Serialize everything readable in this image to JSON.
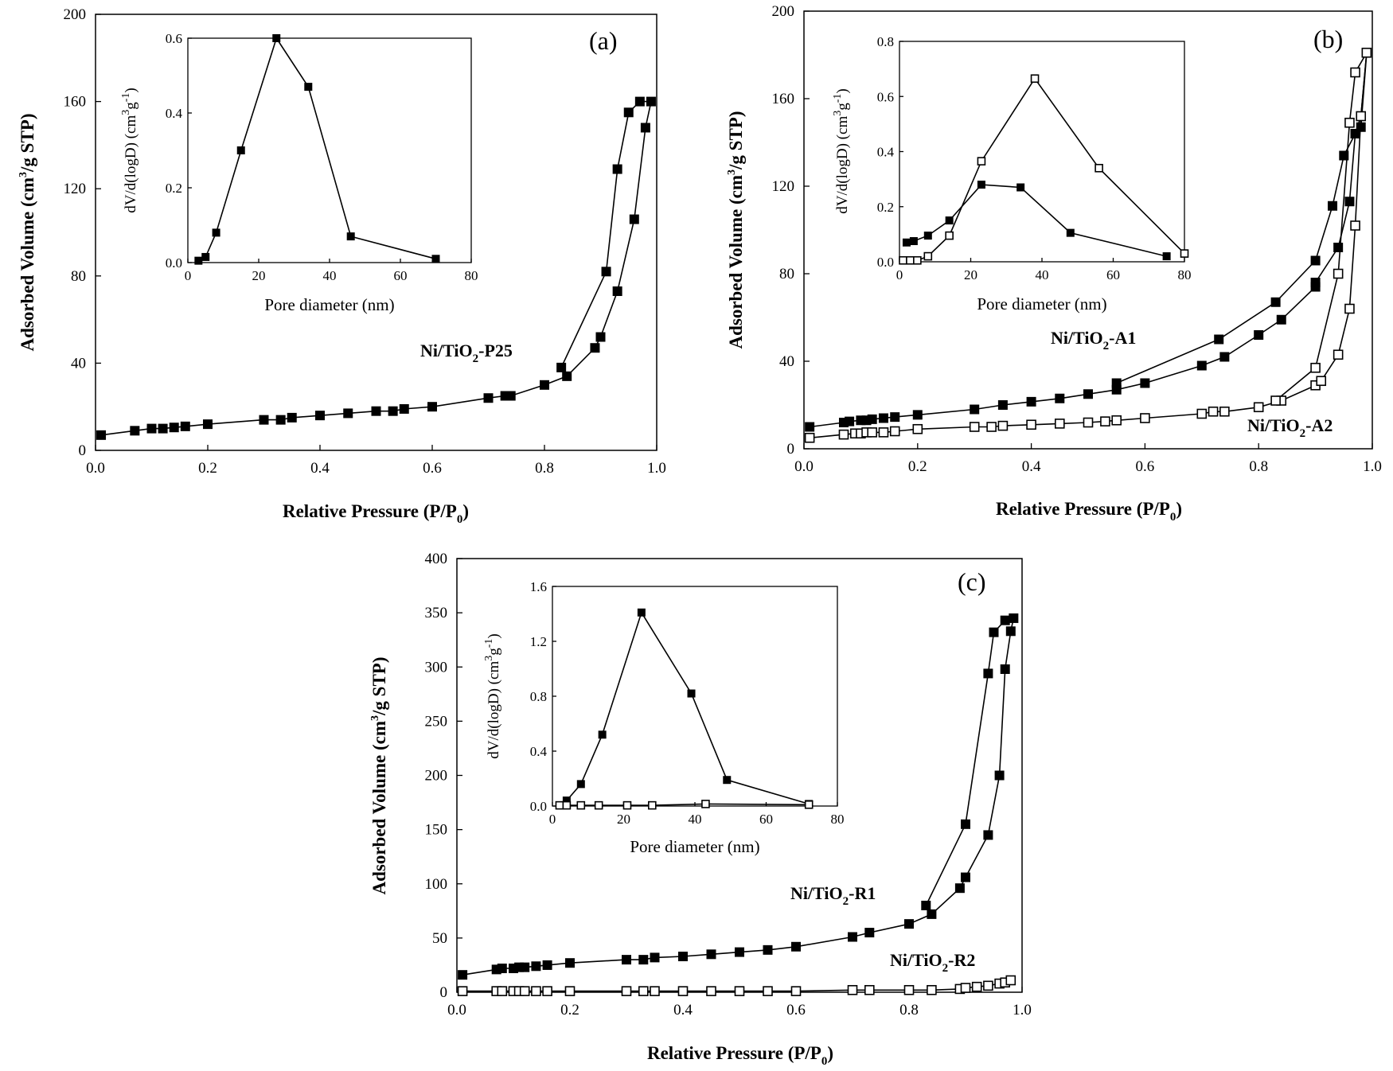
{
  "chart_data": [
    {
      "type": "scatter",
      "panel_label": "(a)",
      "xlabel": "Relative Pressure (P/P",
      "xlabel_sub": "0",
      "xlabel_end": ")",
      "ylabel": "Adsorbed Volume (cm",
      "ylabel_sup": "3",
      "ylabel_end": "/g STP)",
      "xlim": [
        0,
        1.0
      ],
      "ylim": [
        0,
        200
      ],
      "xticks": [
        "0.0",
        "0.2",
        "0.4",
        "0.6",
        "0.8",
        "1.0"
      ],
      "yticks": [
        "0",
        "40",
        "80",
        "120",
        "160",
        "200"
      ],
      "series": [
        {
          "name": "Ni/TiO2-P25",
          "label_main": "Ni/TiO",
          "label_sub": "2",
          "label_end": "-P25",
          "marker": "filled-square",
          "x": [
            0.01,
            0.07,
            0.1,
            0.12,
            0.14,
            0.16,
            0.2,
            0.3,
            0.33,
            0.35,
            0.4,
            0.45,
            0.5,
            0.53,
            0.55,
            0.6,
            0.7,
            0.73,
            0.74,
            0.8,
            0.84,
            0.89,
            0.9,
            0.93,
            0.96,
            0.98,
            0.99,
            0.97,
            0.95,
            0.93,
            0.91,
            0.83
          ],
          "y": [
            7,
            9,
            10,
            10,
            10.5,
            11,
            12,
            14,
            14,
            15,
            16,
            17,
            18,
            18,
            19,
            20,
            24,
            25,
            25,
            30,
            34,
            47,
            52,
            73,
            106,
            148,
            160,
            160,
            155,
            129,
            82,
            38
          ]
        }
      ],
      "inset": {
        "xlabel": "Pore diameter (nm)",
        "ylabel": "dV/d(logD) (cm",
        "ylabel_sup": "3",
        "ylabel_mid": "g",
        "ylabel_sup2": "-1",
        "ylabel_end": ")",
        "xlim": [
          0,
          80
        ],
        "ylim": [
          0,
          0.6
        ],
        "xticks": [
          "0",
          "20",
          "40",
          "60",
          "80"
        ],
        "yticks": [
          "0.0",
          "0.2",
          "0.4",
          "0.6"
        ],
        "series": [
          {
            "name": "Ni/TiO2-P25",
            "marker": "filled-square",
            "x": [
              3,
              5,
              8,
              15,
              25,
              34,
              46,
              70
            ],
            "y": [
              0.005,
              0.015,
              0.08,
              0.3,
              0.6,
              0.47,
              0.07,
              0.01
            ]
          }
        ]
      }
    },
    {
      "type": "scatter",
      "panel_label": "(b)",
      "xlabel": "Relative Pressure (P/P",
      "xlabel_sub": "0",
      "xlabel_end": ")",
      "ylabel": "Adsorbed Volume (cm",
      "ylabel_sup": "3",
      "ylabel_end": "/g STP)",
      "xlim": [
        0,
        1.0
      ],
      "ylim": [
        0,
        200
      ],
      "xticks": [
        "0.0",
        "0.2",
        "0.4",
        "0.6",
        "0.8",
        "1.0"
      ],
      "yticks": [
        "0",
        "40",
        "80",
        "120",
        "160",
        "200"
      ],
      "series": [
        {
          "name": "Ni/TiO2-A1",
          "label_main": "Ni/TiO",
          "label_sub": "2",
          "label_end": "-A1",
          "marker": "filled-square",
          "x": [
            0.01,
            0.07,
            0.08,
            0.1,
            0.11,
            0.12,
            0.14,
            0.16,
            0.2,
            0.3,
            0.35,
            0.4,
            0.45,
            0.5,
            0.55,
            0.6,
            0.7,
            0.74,
            0.8,
            0.84,
            0.9,
            0.9,
            0.94,
            0.96,
            0.97,
            0.98,
            0.99,
            0.98,
            0.97,
            0.95,
            0.93,
            0.9,
            0.83,
            0.73,
            0.55
          ],
          "y": [
            10,
            12,
            12.5,
            13,
            13,
            13.5,
            14,
            14.5,
            15.5,
            18,
            20,
            21.5,
            23,
            25,
            27,
            30,
            38,
            42,
            52,
            59,
            74,
            76,
            92,
            113,
            144,
            152,
            181,
            147,
            144,
            134,
            111,
            86,
            67,
            50,
            30
          ]
        },
        {
          "name": "Ni/TiO2-A2",
          "label_main": "Ni/TiO",
          "label_sub": "2",
          "label_end": "-A2",
          "marker": "open-square",
          "x": [
            0.01,
            0.07,
            0.09,
            0.1,
            0.11,
            0.12,
            0.14,
            0.16,
            0.2,
            0.3,
            0.33,
            0.35,
            0.4,
            0.45,
            0.5,
            0.53,
            0.55,
            0.6,
            0.7,
            0.72,
            0.74,
            0.8,
            0.84,
            0.9,
            0.91,
            0.94,
            0.96,
            0.97,
            0.98,
            0.99,
            0.97,
            0.96,
            0.94,
            0.9,
            0.83
          ],
          "y": [
            5,
            6.5,
            7,
            7,
            7.5,
            7.5,
            7.5,
            8,
            9,
            10,
            10,
            10.5,
            11,
            11.5,
            12,
            12.5,
            13,
            14,
            16,
            17,
            17,
            19,
            22,
            29,
            31,
            43,
            64,
            102,
            152,
            181,
            172,
            149,
            80,
            37,
            22
          ]
        }
      ],
      "inset": {
        "xlabel": "Pore diameter (nm)",
        "ylabel": "dV/d(logD) (cm",
        "ylabel_sup": "3",
        "ylabel_mid": "g",
        "ylabel_sup2": "-1",
        "ylabel_end": ")",
        "xlim": [
          0,
          80
        ],
        "ylim": [
          0,
          0.8
        ],
        "xticks": [
          "0",
          "20",
          "40",
          "60",
          "80"
        ],
        "yticks": [
          "0.0",
          "0.2",
          "0.4",
          "0.6",
          "0.8"
        ],
        "series": [
          {
            "name": "Ni/TiO2-A1",
            "marker": "filled-square",
            "x": [
              2,
              4,
              8,
              14,
              23,
              34,
              48,
              75
            ],
            "y": [
              0.07,
              0.075,
              0.095,
              0.15,
              0.28,
              0.27,
              0.105,
              0.02
            ]
          },
          {
            "name": "Ni/TiO2-A2",
            "marker": "open-square",
            "x": [
              1,
              3,
              5,
              8,
              14,
              23,
              38,
              56,
              80
            ],
            "y": [
              0.005,
              0.005,
              0.005,
              0.02,
              0.095,
              0.365,
              0.665,
              0.34,
              0.03
            ]
          }
        ]
      }
    },
    {
      "type": "scatter",
      "panel_label": "(c)",
      "xlabel": "Relative Pressure (P/P",
      "xlabel_sub": "0",
      "xlabel_end": ")",
      "ylabel": "Adsorbed Volume (cm",
      "ylabel_sup": "3",
      "ylabel_end": "/g STP)",
      "xlim": [
        0,
        1.0
      ],
      "ylim": [
        0,
        400
      ],
      "xticks": [
        "0.0",
        "0.2",
        "0.4",
        "0.6",
        "0.8",
        "1.0"
      ],
      "yticks": [
        "0",
        "50",
        "100",
        "150",
        "200",
        "250",
        "300",
        "350",
        "400"
      ],
      "series": [
        {
          "name": "Ni/TiO2-R1",
          "label_main": "Ni/TiO",
          "label_sub": "2",
          "label_end": "-R1",
          "marker": "filled-square",
          "x": [
            0.01,
            0.07,
            0.08,
            0.1,
            0.11,
            0.12,
            0.14,
            0.16,
            0.2,
            0.3,
            0.33,
            0.35,
            0.4,
            0.45,
            0.5,
            0.55,
            0.6,
            0.7,
            0.73,
            0.8,
            0.84,
            0.89,
            0.9,
            0.94,
            0.96,
            0.97,
            0.98,
            0.985,
            0.97,
            0.95,
            0.94,
            0.9,
            0.83
          ],
          "y": [
            16,
            21,
            22,
            22,
            23,
            23,
            24,
            25,
            27,
            30,
            30,
            32,
            33,
            35,
            37,
            39,
            42,
            51,
            55,
            63,
            72,
            96,
            106,
            145,
            200,
            298,
            333,
            345,
            343,
            332,
            294,
            155,
            80
          ]
        },
        {
          "name": "Ni/TiO2-R2",
          "label_main": "Ni/TiO",
          "label_sub": "2",
          "label_end": "-R2",
          "marker": "open-square",
          "x": [
            0.01,
            0.07,
            0.08,
            0.1,
            0.11,
            0.12,
            0.14,
            0.16,
            0.2,
            0.3,
            0.33,
            0.35,
            0.4,
            0.45,
            0.5,
            0.55,
            0.6,
            0.7,
            0.73,
            0.8,
            0.84,
            0.89,
            0.9,
            0.92,
            0.94,
            0.96,
            0.97,
            0.98
          ],
          "y": [
            1,
            1,
            1,
            1,
            1,
            1,
            1,
            1,
            1,
            1,
            1,
            1,
            1,
            1,
            1,
            1,
            1,
            2,
            2,
            2,
            2,
            3,
            4,
            5,
            6,
            8,
            9,
            11
          ]
        }
      ],
      "inset": {
        "xlabel": "Pore diameter (nm)",
        "ylabel": "dV/d(logD) (cm",
        "ylabel_sup": "3",
        "ylabel_mid": "g",
        "ylabel_sup2": "-1",
        "ylabel_end": ")",
        "xlim": [
          0,
          80
        ],
        "ylim": [
          0,
          1.6
        ],
        "xticks": [
          "0",
          "20",
          "40",
          "60",
          "80"
        ],
        "yticks": [
          "0.0",
          "0.4",
          "0.8",
          "1.2",
          "1.6"
        ],
        "series": [
          {
            "name": "Ni/TiO2-R1",
            "marker": "filled-square",
            "x": [
              4,
              8,
              14,
              25,
              39,
              49,
              72
            ],
            "y": [
              0.04,
              0.16,
              0.52,
              1.41,
              0.82,
              0.19,
              0.015
            ]
          },
          {
            "name": "Ni/TiO2-R2",
            "marker": "open-square",
            "x": [
              2,
              4,
              8,
              13,
              21,
              28,
              43,
              72
            ],
            "y": [
              0.005,
              0.005,
              0.005,
              0.005,
              0.005,
              0.005,
              0.015,
              0.01
            ]
          }
        ]
      }
    }
  ]
}
